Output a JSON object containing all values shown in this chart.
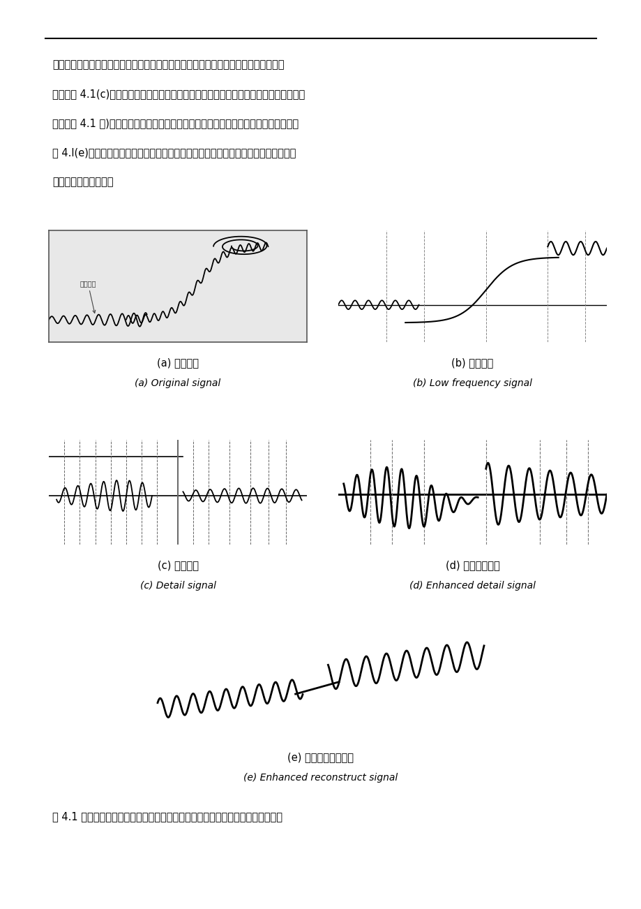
{
  "bg_color": "#ffffff",
  "page_width": 9.2,
  "page_height": 13.02,
  "text_color": "#000000",
  "line_color": "#333333",
  "para_lines": [
    "似表达，它抛除了细节信号而保留了原始信号的整体特征。用原始信号减去近似信号，",
    "即得到图 4.1(c)所示的细节信号，然后对该细节信号进行增强，例如乘以一个放大系数，",
    "结果如图 4.1 体)。最后将增强后的细节信号加到近似信号上重构出增强后的原始信号如",
    "图 4.l(e)，可以看出增强后的原信号整体特征没有改变，但是两部分细节信号得到了增",
    "强，更适合人眼辨认。"
  ],
  "caption_a_cn": "(a) 原始信号",
  "caption_a_en": "(a) Original signal",
  "caption_b_cn": "(b) 低频信号",
  "caption_b_en": "(b) Low frequency signal",
  "caption_c_cn": "(c) 细节信号",
  "caption_c_en": "(c) Detail signal",
  "caption_d_cn": "(d) 增强细节信号",
  "caption_d_en": "(d) Enhanced detail signal",
  "caption_e_cn": "(e) 增强后的复原信号",
  "caption_e_en": "(e) Enhanced reconstruct signal",
  "figure_caption": "图 4.1 从一个直观的角度来阐述信号增强处理方法。当提取低频信号时利用第二章",
  "detail_label": "细节信号"
}
